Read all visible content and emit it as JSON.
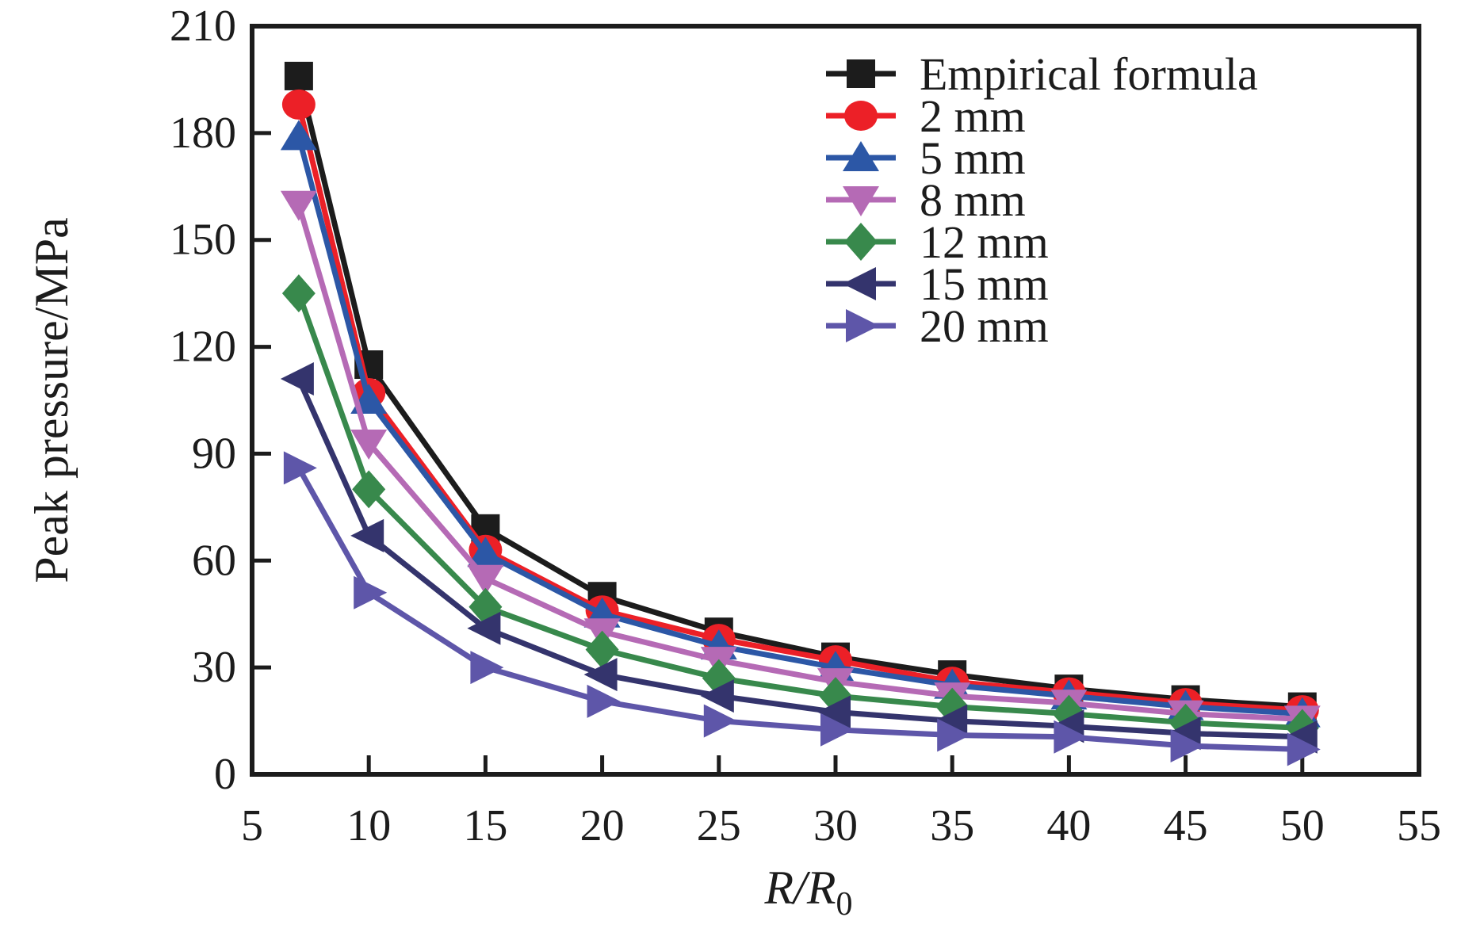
{
  "page": {
    "background": "#ffffff",
    "frame_color": "#1c1c1c"
  },
  "chart_data": {
    "type": "line",
    "title": "",
    "ylabel": "Peak pressure/MPa",
    "xlabel": {
      "main": "R/R",
      "sub": "0"
    },
    "xlim": [
      5,
      55
    ],
    "ylim": [
      0,
      210
    ],
    "x_ticks": [
      5,
      10,
      15,
      20,
      25,
      30,
      35,
      40,
      45,
      50,
      55
    ],
    "y_ticks": [
      0,
      30,
      60,
      90,
      120,
      150,
      180,
      210
    ],
    "grid": false,
    "legend_position": "top-right-inside",
    "x": [
      7,
      10,
      15,
      20,
      25,
      30,
      35,
      40,
      45,
      50
    ],
    "series": [
      {
        "name": "Empirical formula",
        "marker": "square",
        "color": "#1c1c1c",
        "values": [
          196,
          115,
          69,
          50,
          40,
          33,
          28,
          24,
          21,
          19
        ]
      },
      {
        "name": "2 mm",
        "marker": "circle",
        "color": "#ec2027",
        "values": [
          188,
          107,
          63,
          46,
          38,
          32,
          26,
          23,
          20,
          18
        ]
      },
      {
        "name": "5 mm",
        "marker": "triangle-up",
        "color": "#2c57a6",
        "values": [
          179,
          105,
          62,
          45,
          36,
          30,
          25,
          22,
          19,
          17
        ]
      },
      {
        "name": "8 mm",
        "marker": "triangle-down",
        "color": "#b56ab5",
        "values": [
          160,
          93,
          55,
          40,
          32,
          26,
          22,
          20,
          17,
          15.5
        ]
      },
      {
        "name": "12 mm",
        "marker": "diamond",
        "color": "#38894c",
        "values": [
          135,
          80,
          47,
          35,
          27,
          22,
          19,
          17,
          14.5,
          13
        ]
      },
      {
        "name": "15 mm",
        "marker": "triangle-left",
        "color": "#34346d",
        "values": [
          111,
          67,
          41,
          28,
          22,
          17.5,
          15,
          13.5,
          11.5,
          10.5
        ]
      },
      {
        "name": "20 mm",
        "marker": "triangle-right",
        "color": "#5e56a9",
        "values": [
          86,
          51,
          30,
          20.5,
          15,
          12.5,
          11,
          10.5,
          8,
          7
        ]
      }
    ]
  }
}
